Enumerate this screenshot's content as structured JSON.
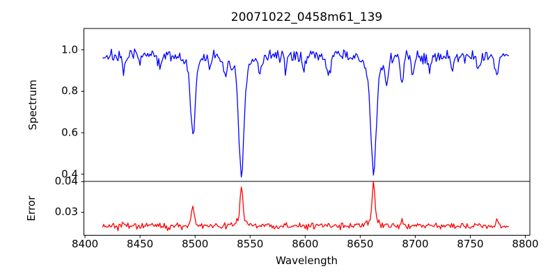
{
  "title": "20071022_0458m61_139",
  "chart_data": {
    "type": "line",
    "title": "20071022_0458m61_139",
    "xlabel": "Wavelength",
    "x_ticks": [
      8400,
      8450,
      8500,
      8550,
      8600,
      8650,
      8700,
      8750,
      8800
    ],
    "xlim": [
      8399.0,
      8804.1
    ],
    "x_start": 8416,
    "x_end": 8785,
    "x_step": 1.0,
    "grid": false,
    "legend": "none",
    "panels": [
      {
        "name": "spectrum",
        "ylabel": "Spectrum",
        "y_tick_labels": [
          "1.0",
          "0.8",
          "0.6",
          "0.4"
        ],
        "y_tick_values": [
          1.0,
          0.8,
          0.6,
          0.4
        ],
        "ylim": [
          0.365,
          1.103
        ],
        "line_color": "#0000ff",
        "continuum": 0.97,
        "noise_sigma": 0.016,
        "features": [
          {
            "center": 8435.0,
            "amp": -0.085,
            "width": 1.6
          },
          {
            "center": 8468.0,
            "amp": -0.065,
            "width": 1.6
          },
          {
            "center": 8498.0,
            "amp": -0.33,
            "width": 1.9
          },
          {
            "center": 8498.0,
            "amp": -0.07,
            "width": 5.0
          },
          {
            "center": 8514.0,
            "amp": -0.065,
            "width": 1.3
          },
          {
            "center": 8527.0,
            "amp": -0.085,
            "width": 1.6
          },
          {
            "center": 8542.1,
            "amp": -0.47,
            "width": 2.4
          },
          {
            "center": 8542.1,
            "amp": -0.09,
            "width": 7.0
          },
          {
            "center": 8559.0,
            "amp": -0.075,
            "width": 1.4
          },
          {
            "center": 8582.0,
            "amp": -0.055,
            "width": 1.2
          },
          {
            "center": 8598.0,
            "amp": -0.06,
            "width": 1.2
          },
          {
            "center": 8621.0,
            "amp": -0.09,
            "width": 1.7
          },
          {
            "center": 8662.1,
            "amp": -0.48,
            "width": 2.4
          },
          {
            "center": 8662.1,
            "amp": -0.09,
            "width": 7.0
          },
          {
            "center": 8674.0,
            "amp": -0.11,
            "width": 1.4
          },
          {
            "center": 8688.0,
            "amp": -0.135,
            "width": 1.5
          },
          {
            "center": 8698.0,
            "amp": -0.07,
            "width": 1.2
          },
          {
            "center": 8713.0,
            "amp": -0.07,
            "width": 1.3
          },
          {
            "center": 8734.0,
            "amp": -0.08,
            "width": 1.3
          },
          {
            "center": 8757.0,
            "amp": -0.06,
            "width": 1.2
          },
          {
            "center": 8774.0,
            "amp": -0.085,
            "width": 1.5
          }
        ]
      },
      {
        "name": "error",
        "ylabel": "Error",
        "y_tick_labels": [
          "0.04",
          "0.03"
        ],
        "y_tick_values": [
          0.04,
          0.03
        ],
        "ylim": [
          0.0225,
          0.0401
        ],
        "line_color": "#ff0000",
        "continuum": 0.0255,
        "noise_sigma": 0.00055,
        "features": [
          {
            "center": 8435.0,
            "amp": 0.0012,
            "width": 1.5
          },
          {
            "center": 8498.0,
            "amp": 0.0055,
            "width": 1.3
          },
          {
            "center": 8498.0,
            "amp": 0.001,
            "width": 4.0
          },
          {
            "center": 8542.1,
            "amp": 0.0115,
            "width": 1.2
          },
          {
            "center": 8542.1,
            "amp": 0.002,
            "width": 5.0
          },
          {
            "center": 8662.1,
            "amp": 0.0125,
            "width": 1.2
          },
          {
            "center": 8662.1,
            "amp": 0.0018,
            "width": 5.0
          },
          {
            "center": 8688.0,
            "amp": 0.0016,
            "width": 1.5
          },
          {
            "center": 8774.0,
            "amp": 0.0016,
            "width": 1.5
          }
        ]
      }
    ],
    "colors": {
      "spectrum_line": "#0000ff",
      "error_line": "#ff0000",
      "axes": "#000000",
      "background": "#ffffff"
    }
  }
}
